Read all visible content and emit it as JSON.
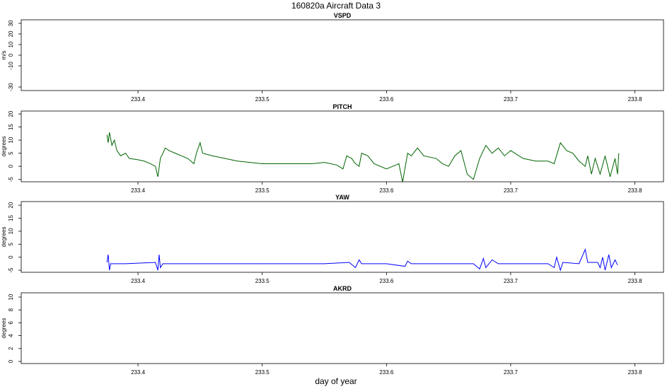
{
  "title": "160820a   Aircraft Data 3",
  "xlabel": "day of year",
  "chart_data": [
    {
      "type": "line",
      "title": "VSPD",
      "ylabel": "m/s",
      "xlim": [
        233.306,
        233.823
      ],
      "xticks": [
        233.4,
        233.5,
        233.6,
        233.7,
        233.8
      ],
      "ylim": [
        -33.3,
        33.3
      ],
      "yticks": [
        -30,
        -10,
        0,
        10,
        20,
        30
      ],
      "series": []
    },
    {
      "type": "line",
      "title": "PITCH",
      "ylabel": "degrees",
      "xlim": [
        233.306,
        233.823
      ],
      "xticks": [
        233.4,
        233.5,
        233.6,
        233.7,
        233.8
      ],
      "ylim": [
        -5.9,
        21.1
      ],
      "yticks": [
        -5,
        0,
        5,
        10,
        15,
        20
      ],
      "series": [
        {
          "color": "#006400",
          "x": [
            233.375,
            233.376,
            233.377,
            233.379,
            233.381,
            233.383,
            233.386,
            233.39,
            233.393,
            233.4,
            233.405,
            233.41,
            233.414,
            233.416,
            233.418,
            233.42,
            233.422,
            233.425,
            233.43,
            233.435,
            233.44,
            233.445,
            233.447,
            233.45,
            233.452,
            233.46,
            233.47,
            233.48,
            233.5,
            233.52,
            233.54,
            233.55,
            233.56,
            233.565,
            233.568,
            233.572,
            233.575,
            233.578,
            233.58,
            233.585,
            233.59,
            233.6,
            233.605,
            233.61,
            233.613,
            233.617,
            233.62,
            233.625,
            233.63,
            233.64,
            233.645,
            233.65,
            233.655,
            233.66,
            233.665,
            233.67,
            233.675,
            233.68,
            233.685,
            233.69,
            233.695,
            233.7,
            233.71,
            233.72,
            233.73,
            233.735,
            233.74,
            233.745,
            233.75,
            233.755,
            233.76,
            233.762,
            233.765,
            233.768,
            233.772,
            233.776,
            233.78,
            233.784,
            233.786,
            233.787
          ],
          "values": [
            12,
            9,
            13,
            8,
            10,
            6,
            4,
            5,
            3,
            2.5,
            2,
            1,
            0,
            -4,
            3,
            5,
            7,
            6,
            5,
            4,
            3,
            1,
            5,
            9,
            5,
            4,
            3,
            2,
            1,
            1,
            1,
            1.5,
            0.5,
            -1,
            4,
            3,
            1,
            0,
            5,
            4,
            1,
            -1,
            0,
            1,
            -6,
            5,
            4,
            7,
            4,
            3,
            1,
            0,
            4,
            6,
            -3,
            -5,
            3,
            8,
            5,
            7,
            4,
            6,
            3,
            2,
            2,
            1,
            9,
            6,
            5,
            2,
            0,
            4,
            -3,
            3,
            -3,
            4,
            -4,
            3,
            -3,
            5
          ]
        }
      ]
    },
    {
      "type": "line",
      "title": "YAW",
      "ylabel": "degrees",
      "xlim": [
        233.306,
        233.823
      ],
      "xticks": [
        233.4,
        233.5,
        233.6,
        233.7,
        233.8
      ],
      "ylim": [
        -5.8,
        21.4
      ],
      "yticks": [
        -5,
        0,
        5,
        10,
        15,
        20
      ],
      "series": [
        {
          "color": "#0000ff",
          "x": [
            233.375,
            233.376,
            233.377,
            233.378,
            233.39,
            233.414,
            233.416,
            233.417,
            233.418,
            233.42,
            233.45,
            233.5,
            233.55,
            233.57,
            233.575,
            233.578,
            233.58,
            233.6,
            233.615,
            233.617,
            233.62,
            233.67,
            233.675,
            233.678,
            233.68,
            233.685,
            233.69,
            233.73,
            233.735,
            233.737,
            233.74,
            233.742,
            233.755,
            233.76,
            233.762,
            233.77,
            233.772,
            233.774,
            233.776,
            233.779,
            233.781,
            233.784,
            233.786
          ],
          "values": [
            -2,
            1,
            -5,
            -2.5,
            -2.5,
            -2,
            -5,
            1,
            -4,
            -2.5,
            -2.5,
            -2.5,
            -2.5,
            -2,
            -4,
            -1,
            -2.5,
            -2.5,
            -3.5,
            -1.5,
            -2.5,
            -2.5,
            -4.5,
            -0.5,
            -4,
            -1,
            -2.5,
            -2.5,
            -4,
            0,
            -5,
            -2,
            -2.5,
            3,
            -2,
            -2,
            -4,
            0,
            -5,
            1,
            -4,
            -1,
            -3
          ]
        }
      ]
    },
    {
      "type": "line",
      "title": "AKRD",
      "ylabel": "degrees",
      "xlim": [
        233.306,
        233.823
      ],
      "xticks": [
        233.4,
        233.5,
        233.6,
        233.7,
        233.8
      ],
      "ylim": [
        -0.33,
        10.66
      ],
      "yticks": [
        0,
        2,
        4,
        6,
        8,
        10
      ],
      "series": []
    }
  ]
}
